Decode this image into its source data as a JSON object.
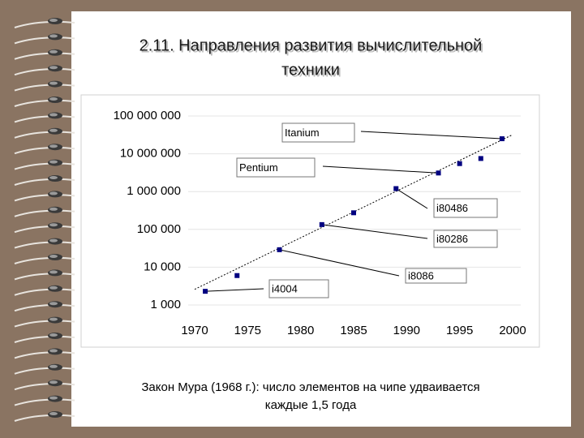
{
  "chart_data": {
    "type": "scatter",
    "title": [
      "2.11. Направления развития вычислительной",
      "техники"
    ],
    "caption": [
      "Закон Мура (1968 г.): число элементов на чипе удваивается",
      "каждые 1,5 года"
    ],
    "points": {
      "color": "#000080",
      "x": [
        1971,
        1974,
        1978,
        1982,
        1985,
        1989,
        1993,
        1995,
        1997,
        1999
      ],
      "values": [
        2300,
        6000,
        29000,
        134000,
        275000,
        1200000,
        3100000,
        5500000,
        7500000,
        25000000
      ]
    },
    "trend": {
      "color": "#000000",
      "x": [
        1970,
        2000
      ],
      "values": [
        2600,
        32000000
      ]
    },
    "annotations": [
      "Itanium",
      "Pentium",
      "i80486",
      "i80286",
      "i8086",
      "i4004"
    ],
    "xlim": [
      1970,
      2000
    ],
    "xticks": [
      1970,
      1975,
      1980,
      1985,
      1990,
      1995,
      2000
    ],
    "ylim": [
      1000,
      100000000
    ],
    "yticks": [
      {
        "value": 1000,
        "label": "1 000"
      },
      {
        "value": 10000,
        "label": "10 000"
      },
      {
        "value": 100000,
        "label": "100 000"
      },
      {
        "value": 1000000,
        "label": "1 000 000"
      },
      {
        "value": 10000000,
        "label": "10 000 000"
      },
      {
        "value": 100000000,
        "label": "100 000 000"
      }
    ],
    "log_y": true,
    "grid": true
  }
}
